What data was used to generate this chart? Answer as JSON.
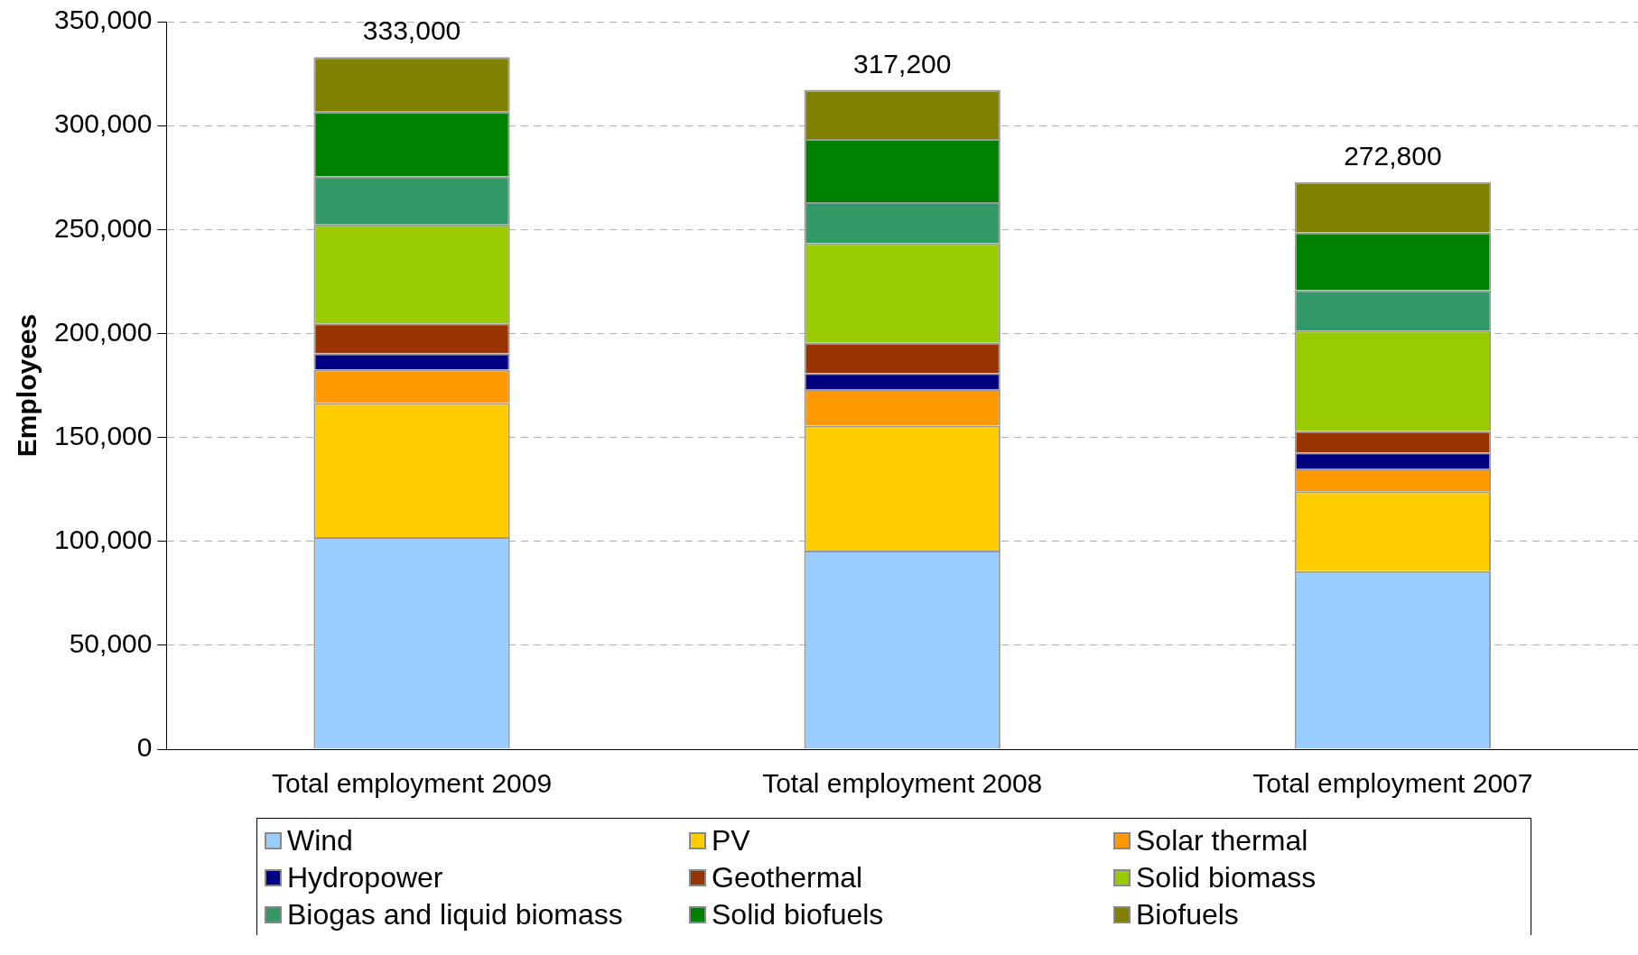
{
  "chart_data": {
    "type": "bar",
    "stacked": true,
    "ylabel": "Employees",
    "categories": [
      "Total employment 2009",
      "Total employment 2008",
      "Total employment 2007"
    ],
    "series": [
      {
        "name": "Wind",
        "color": "#99ccff",
        "values": [
          102000,
          95500,
          85700
        ]
      },
      {
        "name": "PV",
        "color": "#ffcc00",
        "values": [
          64500,
          60200,
          38400
        ]
      },
      {
        "name": "Solar thermal",
        "color": "#ff9900",
        "values": [
          16100,
          17600,
          11000
        ]
      },
      {
        "name": "Hydropower",
        "color": "#000080",
        "values": [
          7800,
          7700,
          7700
        ]
      },
      {
        "name": "Geothermal",
        "color": "#993300",
        "values": [
          14500,
          14500,
          10300
        ]
      },
      {
        "name": "Solid biomass",
        "color": "#99cc00",
        "values": [
          47500,
          48000,
          48300
        ]
      },
      {
        "name": "Biogas and liquid biomass",
        "color": "#339966",
        "values": [
          23200,
          19700,
          19400
        ]
      },
      {
        "name": "Solid biofuels",
        "color": "#008000",
        "values": [
          31100,
          30400,
          27800
        ]
      },
      {
        "name": "Biofuels",
        "color": "#808000",
        "values": [
          26300,
          23600,
          24200
        ]
      }
    ],
    "totals": [
      "333,000",
      "317,200",
      "272,800"
    ],
    "ylim": [
      0,
      350000
    ],
    "yticks": [
      0,
      {
        "value": 50000,
        "label": "50,000"
      },
      {
        "value": 100000,
        "label": "100,000"
      },
      {
        "value": 150000,
        "label": "150,000"
      },
      {
        "value": 200000,
        "label": "200,000"
      },
      {
        "value": 250000,
        "label": "250,000"
      },
      {
        "value": 300000,
        "label": "300,000"
      },
      {
        "value": 350000,
        "label": "350,000"
      }
    ],
    "grid": "y",
    "legend": "bottom"
  }
}
